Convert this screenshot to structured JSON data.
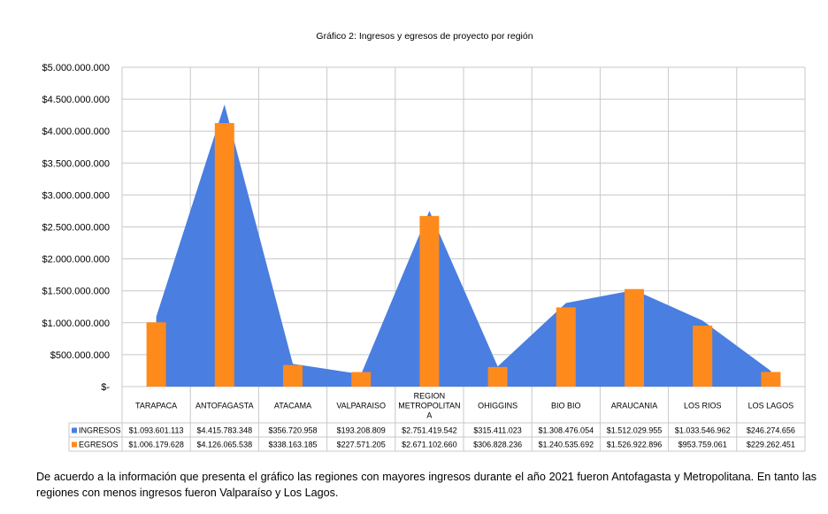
{
  "chart_data": {
    "type": "area",
    "title": "Gráfico 2: Ingresos y egresos de proyecto por región",
    "categories": [
      "TARAPACA",
      "ANTOFAGASTA",
      "ATACAMA",
      "VALPARAISO",
      "REGION METROPOLITANA",
      "OHIGGINS",
      "BIO BIO",
      "ARAUCANIA",
      "LOS RIOS",
      "LOS LAGOS"
    ],
    "category_labels": [
      [
        "TARAPACA"
      ],
      [
        "ANTOFAGASTA"
      ],
      [
        "ATACAMA"
      ],
      [
        "VALPARAISO"
      ],
      [
        "REGION",
        "METROPOLITAN",
        "A"
      ],
      [
        "OHIGGINS"
      ],
      [
        "BIO BIO"
      ],
      [
        "ARAUCANIA"
      ],
      [
        "LOS RIOS"
      ],
      [
        "LOS LAGOS"
      ]
    ],
    "series": [
      {
        "name": "INGRESOS",
        "kind": "area",
        "color": "#4a7ee0",
        "values": [
          1093601113,
          4415783348,
          356720958,
          193208809,
          2751419542,
          315411023,
          1308476054,
          1512029955,
          1033546962,
          246274656
        ],
        "labels": [
          "$1.093.601.113",
          "$4.415.783.348",
          "$356.720.958",
          "$193.208.809",
          "$2.751.419.542",
          "$315.411.023",
          "$1.308.476.054",
          "$1.512.029.955",
          "$1.033.546.962",
          "$246.274.656"
        ]
      },
      {
        "name": "EGRESOS",
        "kind": "bar",
        "color": "#ff8a1c",
        "values": [
          1006179628,
          4126065538,
          338163185,
          227571205,
          2671102660,
          306828236,
          1240535692,
          1526922896,
          953759061,
          229262451
        ],
        "labels": [
          "$1.006.179.628",
          "$4.126.065.538",
          "$338.163.185",
          "$227.571.205",
          "$2.671.102.660",
          "$306.828.236",
          "$1.240.535.692",
          "$1.526.922.896",
          "$953.759.061",
          "$229.262.451"
        ]
      }
    ],
    "yticks": [
      0,
      500000000,
      1000000000,
      1500000000,
      2000000000,
      2500000000,
      3000000000,
      3500000000,
      4000000000,
      4500000000,
      5000000000
    ],
    "ytick_labels": [
      "$-",
      "$500.000.000",
      "$1.000.000.000",
      "$1.500.000.000",
      "$2.000.000.000",
      "$2.500.000.000",
      "$3.000.000.000",
      "$3.500.000.000",
      "$4.000.000.000",
      "$4.500.000.000",
      "$5.000.000.000"
    ],
    "ylim": [
      0,
      5000000000
    ],
    "grid": true,
    "legend": "data-table"
  },
  "caption": "De acuerdo a la información que presenta el gráfico las regiones con mayores ingresos durante el año 2021 fueron Antofagasta y Metropolitana. En tanto las regiones con menos ingresos fueron Valparaíso y Los Lagos."
}
